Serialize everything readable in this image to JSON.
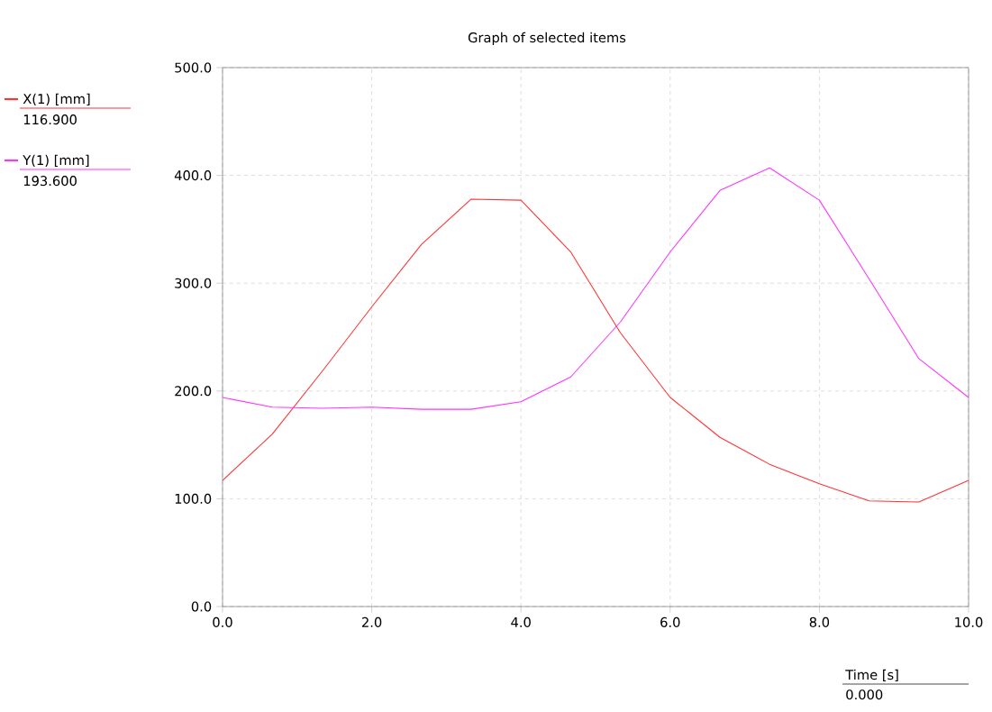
{
  "chart_data": {
    "type": "line",
    "title": "Graph of selected items",
    "xlabel": "Time [s]",
    "x": [
      0,
      0.667,
      1.333,
      2.0,
      2.667,
      3.333,
      4.0,
      4.667,
      5.333,
      6.0,
      6.667,
      7.333,
      8.0,
      8.667,
      9.333,
      10.0
    ],
    "series": [
      {
        "name": "X(1) [mm]",
        "color": "#ff3333",
        "values": [
          117,
          160,
          218,
          278,
          336,
          378,
          377,
          329,
          254,
          194,
          157,
          132,
          114,
          98,
          97,
          117
        ]
      },
      {
        "name": "Y(1) [mm]",
        "color": "#ff33ff",
        "values": [
          194,
          185,
          184,
          185,
          183,
          183,
          190,
          213,
          264,
          329,
          386,
          407,
          377,
          304,
          230,
          194
        ]
      }
    ],
    "annotations": [
      "116.900",
      "193.600",
      "0.000"
    ],
    "xlim": [
      0,
      10
    ],
    "ylim": [
      0,
      500
    ],
    "xticks": [
      {
        "value": 0,
        "label": "0.0"
      },
      {
        "value": 2,
        "label": "2.0"
      },
      {
        "value": 4,
        "label": "4.0"
      },
      {
        "value": 6,
        "label": "6.0"
      },
      {
        "value": 8,
        "label": "8.0"
      },
      {
        "value": 10,
        "label": "10.0"
      }
    ],
    "yticks": [
      {
        "value": 0,
        "label": "0.0"
      },
      {
        "value": 100,
        "label": "100.0"
      },
      {
        "value": 200,
        "label": "200.0"
      },
      {
        "value": 300,
        "label": "300.0"
      },
      {
        "value": 400,
        "label": "400.0"
      },
      {
        "value": 500,
        "label": "500.0"
      }
    ],
    "grid": true,
    "legend": "left",
    "marker": "none",
    "line_style": "solid"
  }
}
